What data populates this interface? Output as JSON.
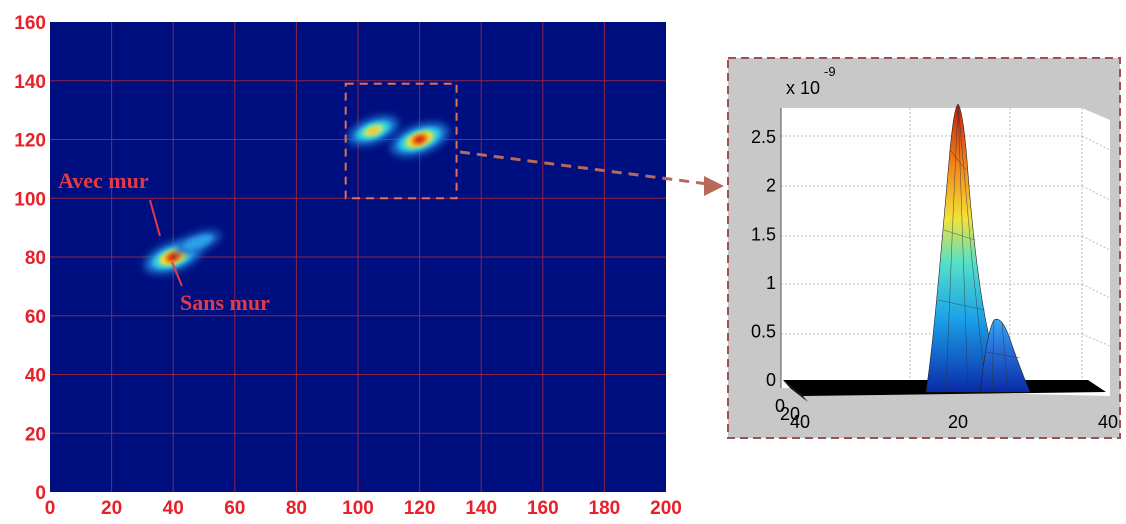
{
  "chart_data": [
    {
      "type": "heatmap",
      "title": "",
      "xlabel": "",
      "ylabel": "",
      "xlim": [
        0,
        200
      ],
      "ylim": [
        0,
        160
      ],
      "grid": true,
      "x_ticks": [
        "0",
        "20",
        "40",
        "60",
        "80",
        "100",
        "120",
        "140",
        "160",
        "180",
        "200"
      ],
      "y_ticks": [
        "0",
        "20",
        "40",
        "60",
        "80",
        "100",
        "120",
        "140",
        "160"
      ],
      "colors": {
        "background": "#000f80",
        "axis_text": "#e8202a",
        "grid": "#b2283a",
        "annotation": "#e23a46"
      },
      "hotspots": [
        {
          "x": 40,
          "y": 80,
          "peak": "high"
        },
        {
          "x": 48,
          "y": 85,
          "peak": "low"
        },
        {
          "x": 105,
          "y": 123,
          "peak": "medium"
        },
        {
          "x": 120,
          "y": 120,
          "peak": "high"
        }
      ],
      "zoom_box": {
        "x": [
          96,
          132
        ],
        "y": [
          100,
          139
        ]
      },
      "annotations": [
        {
          "text": "Avec mur",
          "x": 38,
          "y": 81
        },
        {
          "text": "Sans mur",
          "x": 41,
          "y": 79
        }
      ]
    },
    {
      "type": "surface",
      "scale_label": "x 10",
      "scale_exponent": "-9",
      "zlim": [
        0,
        2.8
      ],
      "z_ticks": [
        "0",
        "0.5",
        "1",
        "1.5",
        "2",
        "2.5"
      ],
      "x_ticks": [
        "20",
        "40"
      ],
      "y_ticks": [
        "0",
        "20",
        "40"
      ],
      "peaks": [
        {
          "x": 20,
          "value": 2.8
        },
        {
          "x": 25,
          "value": 0.65
        }
      ]
    }
  ]
}
